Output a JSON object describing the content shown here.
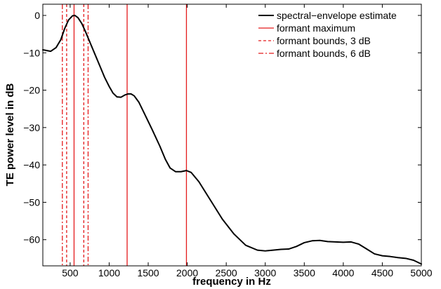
{
  "chart_data": {
    "type": "line",
    "title": "",
    "xlabel": "frequency in Hz",
    "ylabel": "TE power level in dB",
    "xlim": [
      150,
      5000
    ],
    "ylim": [
      -67,
      3
    ],
    "x_ticks": [
      500,
      1000,
      1500,
      2000,
      2500,
      3000,
      3500,
      4000,
      4500,
      5000
    ],
    "y_ticks": [
      0,
      -10,
      -20,
      -30,
      -40,
      -50,
      -60
    ],
    "grid": false,
    "legend_position": "top-right",
    "series": [
      {
        "name": "spectral−envelope estimate",
        "color": "#000000",
        "style": "solid",
        "points": [
          [
            150,
            -9.2
          ],
          [
            250,
            -9.6
          ],
          [
            320,
            -8.6
          ],
          [
            380,
            -6.5
          ],
          [
            430,
            -3.5
          ],
          [
            480,
            -1.2
          ],
          [
            530,
            -0.1
          ],
          [
            560,
            0.0
          ],
          [
            600,
            -0.6
          ],
          [
            650,
            -2.2
          ],
          [
            700,
            -4.5
          ],
          [
            760,
            -7.5
          ],
          [
            820,
            -10.5
          ],
          [
            880,
            -13.5
          ],
          [
            940,
            -16.5
          ],
          [
            1000,
            -19.0
          ],
          [
            1050,
            -20.8
          ],
          [
            1100,
            -21.8
          ],
          [
            1150,
            -21.9
          ],
          [
            1200,
            -21.3
          ],
          [
            1240,
            -21.0
          ],
          [
            1280,
            -21.0
          ],
          [
            1320,
            -21.5
          ],
          [
            1380,
            -23.2
          ],
          [
            1450,
            -26.2
          ],
          [
            1550,
            -30.5
          ],
          [
            1650,
            -35.0
          ],
          [
            1720,
            -38.5
          ],
          [
            1780,
            -40.8
          ],
          [
            1850,
            -41.8
          ],
          [
            1920,
            -41.8
          ],
          [
            1990,
            -41.5
          ],
          [
            2050,
            -42.0
          ],
          [
            2150,
            -44.5
          ],
          [
            2300,
            -49.5
          ],
          [
            2450,
            -54.5
          ],
          [
            2600,
            -58.5
          ],
          [
            2750,
            -61.5
          ],
          [
            2900,
            -62.8
          ],
          [
            3000,
            -63.0
          ],
          [
            3100,
            -62.8
          ],
          [
            3200,
            -62.6
          ],
          [
            3300,
            -62.5
          ],
          [
            3400,
            -61.8
          ],
          [
            3500,
            -60.8
          ],
          [
            3600,
            -60.3
          ],
          [
            3700,
            -60.2
          ],
          [
            3800,
            -60.5
          ],
          [
            3900,
            -60.6
          ],
          [
            4000,
            -60.7
          ],
          [
            4100,
            -60.6
          ],
          [
            4200,
            -61.2
          ],
          [
            4300,
            -62.5
          ],
          [
            4400,
            -63.8
          ],
          [
            4500,
            -64.3
          ],
          [
            4600,
            -64.5
          ],
          [
            4700,
            -64.8
          ],
          [
            4800,
            -65.0
          ],
          [
            4900,
            -65.5
          ],
          [
            5000,
            -66.5
          ]
        ]
      }
    ],
    "vertical_lines": [
      {
        "name": "formant maximum",
        "color": "#e41a1c",
        "style": "solid",
        "x": [
          550,
          1230,
          1990
        ]
      },
      {
        "name": "formant bounds, 3 dB",
        "color": "#e41a1c",
        "style": "dashed",
        "x": [
          455,
          675
        ]
      },
      {
        "name": "formant bounds, 6 dB",
        "color": "#e41a1c",
        "style": "dashdot",
        "x": [
          400,
          730
        ]
      }
    ],
    "legend": [
      {
        "label": "spectral−envelope estimate",
        "color": "#000000",
        "style": "solid"
      },
      {
        "label": "formant maximum",
        "color": "#e41a1c",
        "style": "solid"
      },
      {
        "label": "formant bounds, 3 dB",
        "color": "#e41a1c",
        "style": "dashed"
      },
      {
        "label": "formant bounds, 6 dB",
        "color": "#e41a1c",
        "style": "dashdot"
      }
    ]
  }
}
